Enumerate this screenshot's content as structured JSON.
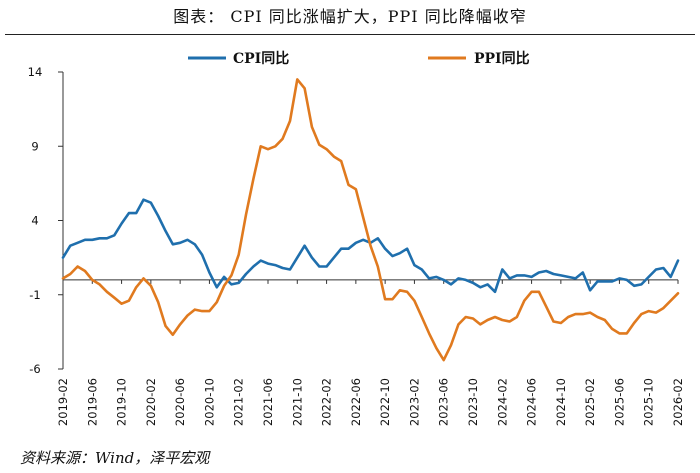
{
  "page": {
    "title": "图表： CPI 同比涨幅扩大，PPI 同比降幅收窄",
    "source": "资料来源：Wind，泽平宏观"
  },
  "chart_data": {
    "type": "line",
    "ylim": [
      -6,
      14
    ],
    "yticks": [
      -6,
      -1,
      4,
      9,
      14
    ],
    "xlim": [
      "2019-02",
      "2026-02"
    ],
    "xticks": [
      "2019-02",
      "2019-06",
      "2019-10",
      "2020-02",
      "2020-06",
      "2020-10",
      "2021-02",
      "2021-06",
      "2021-10",
      "2022-02",
      "2022-06",
      "2022-10",
      "2023-02",
      "2023-06",
      "2023-10",
      "2024-02",
      "2024-06",
      "2024-10",
      "2025-02",
      "2025-06",
      "2025-10",
      "2026-02"
    ],
    "legend_position": "top",
    "grid": false,
    "series": [
      {
        "name": "CPI同比",
        "color": "#1f6fad",
        "x": [
          "2019-02",
          "2019-03",
          "2019-04",
          "2019-05",
          "2019-06",
          "2019-07",
          "2019-08",
          "2019-09",
          "2019-10",
          "2019-11",
          "2019-12",
          "2020-01",
          "2020-02",
          "2020-03",
          "2020-04",
          "2020-05",
          "2020-06",
          "2020-07",
          "2020-08",
          "2020-09",
          "2020-10",
          "2020-11",
          "2020-12",
          "2021-01",
          "2021-02",
          "2021-03",
          "2021-04",
          "2021-05",
          "2021-06",
          "2021-07",
          "2021-08",
          "2021-09",
          "2021-10",
          "2021-11",
          "2021-12",
          "2022-01",
          "2022-02",
          "2022-03",
          "2022-04",
          "2022-05",
          "2022-06",
          "2022-07",
          "2022-08",
          "2022-09",
          "2022-10",
          "2022-11",
          "2022-12",
          "2023-01",
          "2023-02",
          "2023-03",
          "2023-04",
          "2023-05",
          "2023-06",
          "2023-07",
          "2023-08",
          "2023-09",
          "2023-10",
          "2023-11",
          "2023-12",
          "2024-01",
          "2024-02",
          "2024-03",
          "2024-04",
          "2024-05",
          "2024-06",
          "2024-07",
          "2024-08",
          "2024-09",
          "2024-10",
          "2024-11",
          "2024-12",
          "2025-01",
          "2025-02",
          "2025-03",
          "2025-04",
          "2025-05",
          "2025-06",
          "2025-07",
          "2025-08",
          "2025-09",
          "2025-10",
          "2025-11",
          "2025-12",
          "2026-01",
          "2026-02"
        ],
        "values": [
          1.5,
          2.3,
          2.5,
          2.7,
          2.7,
          2.8,
          2.8,
          3.0,
          3.8,
          4.5,
          4.5,
          5.4,
          5.2,
          4.3,
          3.3,
          2.4,
          2.5,
          2.7,
          2.4,
          1.7,
          0.5,
          -0.5,
          0.2,
          -0.3,
          -0.2,
          0.4,
          0.9,
          1.3,
          1.1,
          1.0,
          0.8,
          0.7,
          1.5,
          2.3,
          1.5,
          0.9,
          0.9,
          1.5,
          2.1,
          2.1,
          2.5,
          2.7,
          2.5,
          2.8,
          2.1,
          1.6,
          1.8,
          2.1,
          1.0,
          0.7,
          0.1,
          0.2,
          0.0,
          -0.3,
          0.1,
          0.0,
          -0.2,
          -0.5,
          -0.3,
          -0.8,
          0.7,
          0.1,
          0.3,
          0.3,
          0.2,
          0.5,
          0.6,
          0.4,
          0.3,
          0.2,
          0.1,
          0.5,
          -0.7,
          -0.1,
          -0.1,
          -0.1,
          0.1,
          0.0,
          -0.4,
          -0.3,
          0.2,
          0.7,
          0.8,
          0.2,
          1.3
        ]
      },
      {
        "name": "PPI同比",
        "color": "#e07a1f",
        "x": [
          "2019-02",
          "2019-03",
          "2019-04",
          "2019-05",
          "2019-06",
          "2019-07",
          "2019-08",
          "2019-09",
          "2019-10",
          "2019-11",
          "2019-12",
          "2020-01",
          "2020-02",
          "2020-03",
          "2020-04",
          "2020-05",
          "2020-06",
          "2020-07",
          "2020-08",
          "2020-09",
          "2020-10",
          "2020-11",
          "2020-12",
          "2021-01",
          "2021-02",
          "2021-03",
          "2021-04",
          "2021-05",
          "2021-06",
          "2021-07",
          "2021-08",
          "2021-09",
          "2021-10",
          "2021-11",
          "2021-12",
          "2022-01",
          "2022-02",
          "2022-03",
          "2022-04",
          "2022-05",
          "2022-06",
          "2022-07",
          "2022-08",
          "2022-09",
          "2022-10",
          "2022-11",
          "2022-12",
          "2023-01",
          "2023-02",
          "2023-03",
          "2023-04",
          "2023-05",
          "2023-06",
          "2023-07",
          "2023-08",
          "2023-09",
          "2023-10",
          "2023-11",
          "2023-12",
          "2024-01",
          "2024-02",
          "2024-03",
          "2024-04",
          "2024-05",
          "2024-06",
          "2024-07",
          "2024-08",
          "2024-09",
          "2024-10",
          "2024-11",
          "2024-12",
          "2025-01",
          "2025-02",
          "2025-03",
          "2025-04",
          "2025-05",
          "2025-06",
          "2025-07",
          "2025-08",
          "2025-09",
          "2025-10",
          "2025-11",
          "2025-12",
          "2026-01",
          "2026-02"
        ],
        "values": [
          0.1,
          0.4,
          0.9,
          0.6,
          0.0,
          -0.3,
          -0.8,
          -1.2,
          -1.6,
          -1.4,
          -0.5,
          0.1,
          -0.4,
          -1.5,
          -3.1,
          -3.7,
          -3.0,
          -2.4,
          -2.0,
          -2.1,
          -2.1,
          -1.5,
          -0.4,
          0.3,
          1.7,
          4.4,
          6.8,
          9.0,
          8.8,
          9.0,
          9.5,
          10.7,
          13.5,
          12.9,
          10.3,
          9.1,
          8.8,
          8.3,
          8.0,
          6.4,
          6.1,
          4.2,
          2.3,
          0.9,
          -1.3,
          -1.3,
          -0.7,
          -0.8,
          -1.4,
          -2.5,
          -3.6,
          -4.6,
          -5.4,
          -4.4,
          -3.0,
          -2.5,
          -2.6,
          -3.0,
          -2.7,
          -2.5,
          -2.7,
          -2.8,
          -2.5,
          -1.4,
          -0.8,
          -0.8,
          -1.8,
          -2.8,
          -2.9,
          -2.5,
          -2.3,
          -2.3,
          -2.2,
          -2.5,
          -2.7,
          -3.3,
          -3.6,
          -3.6,
          -2.9,
          -2.3,
          -2.1,
          -2.2,
          -1.9,
          -1.4,
          -0.9
        ]
      }
    ]
  }
}
